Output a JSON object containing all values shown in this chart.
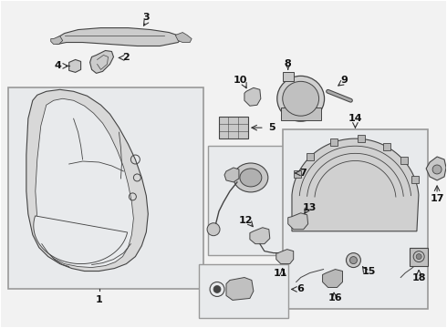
{
  "bg_color": "#f2f2f2",
  "fig_bg": "#ffffff",
  "line_color": "#444444",
  "box_fill": "#e8eaec",
  "box_edge": "#999999",
  "label_fontsize": 8.0,
  "arrow_color": "#333333"
}
